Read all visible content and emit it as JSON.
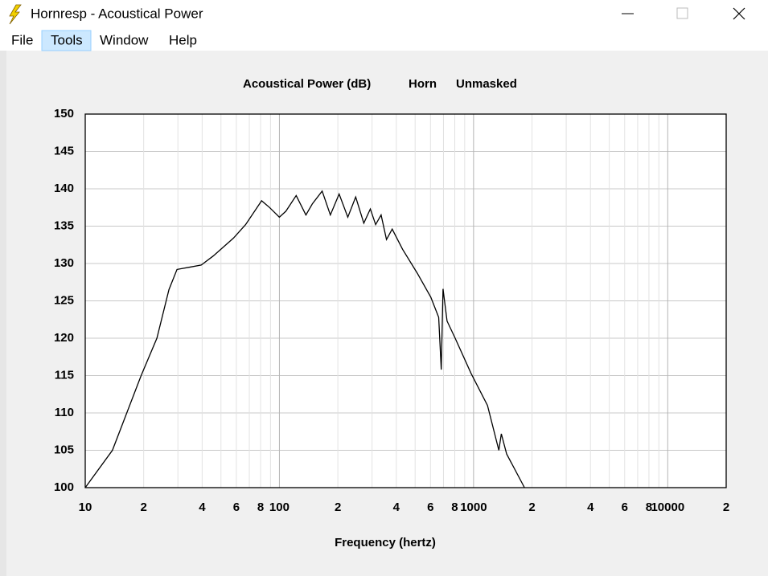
{
  "window": {
    "title": "Hornresp - Acoustical Power"
  },
  "menu": [
    "File",
    "Tools",
    "Window",
    "Help"
  ],
  "chart_data": {
    "type": "line",
    "title_parts": [
      "Acoustical Power (dB)",
      "Horn",
      "Unmasked"
    ],
    "xlabel": "Frequency (hertz)",
    "xscale": "log",
    "grid": true,
    "xlim": [
      10,
      20000
    ],
    "ylim": [
      100,
      150
    ],
    "xticks": [
      10,
      {
        "value": 20,
        "label": "2"
      },
      {
        "value": 40,
        "label": "4"
      },
      {
        "value": 60,
        "label": "6"
      },
      {
        "value": 80,
        "label": "8"
      },
      100,
      {
        "value": 200,
        "label": "2"
      },
      {
        "value": 400,
        "label": "4"
      },
      {
        "value": 600,
        "label": "6"
      },
      {
        "value": 800,
        "label": "8"
      },
      1000,
      {
        "value": 2000,
        "label": "2"
      },
      {
        "value": 4000,
        "label": "4"
      },
      {
        "value": 6000,
        "label": "6"
      },
      {
        "value": 8000,
        "label": "8"
      },
      10000,
      {
        "value": 20000,
        "label": "2"
      }
    ],
    "xgrid_minor": [
      30,
      50,
      70,
      90,
      300,
      500,
      700,
      900,
      3000,
      5000,
      7000,
      9000
    ],
    "yticks": [
      100,
      105,
      110,
      115,
      120,
      125,
      130,
      135,
      140,
      145,
      150
    ],
    "x": [
      10,
      13.8,
      19.4,
      23.4,
      27,
      29.7,
      34.3,
      39.6,
      45.6,
      58,
      67,
      81,
      89,
      100,
      108,
      122,
      137,
      148,
      166,
      183,
      203,
      225,
      247,
      272,
      294,
      313,
      334,
      356,
      381,
      431,
      513,
      602,
      661,
      682,
      696,
      730,
      801,
      970,
      1180,
      1350,
      1390,
      1480,
      1830
    ],
    "series": [
      {
        "color": "#000000",
        "values": [
          100,
          105,
          115,
          120,
          126.5,
          129.2,
          129.5,
          129.8,
          131,
          133.4,
          135.2,
          138.4,
          137.5,
          136.2,
          137,
          139.1,
          136.5,
          138,
          139.7,
          136.5,
          139.3,
          136.2,
          138.9,
          135.4,
          137.3,
          135.2,
          136.5,
          133.2,
          134.6,
          131.9,
          128.7,
          125.5,
          122.8,
          115.8,
          126.6,
          122.3,
          120.1,
          115.3,
          111,
          105,
          107.2,
          104.5,
          100
        ]
      }
    ]
  }
}
